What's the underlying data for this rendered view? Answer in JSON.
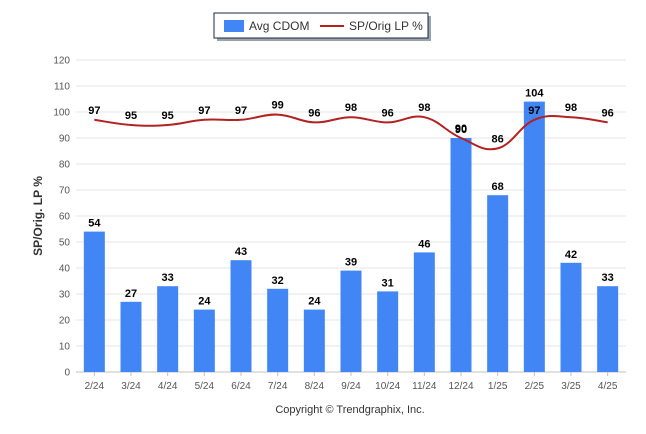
{
  "colors": {
    "bar": "#4285f4",
    "line": "#b22222"
  },
  "chart_data": {
    "type": "bar",
    "categories": [
      "2/24",
      "3/24",
      "4/24",
      "5/24",
      "6/24",
      "7/24",
      "8/24",
      "9/24",
      "10/24",
      "11/24",
      "12/24",
      "1/25",
      "2/25",
      "3/25",
      "4/25"
    ],
    "series": [
      {
        "name": "Avg CDOM",
        "type": "bar",
        "values": [
          54,
          27,
          33,
          24,
          43,
          32,
          24,
          39,
          31,
          46,
          90,
          68,
          104,
          42,
          33
        ]
      },
      {
        "name": "SP/Orig LP %",
        "type": "line",
        "values": [
          97,
          95,
          95,
          97,
          97,
          99,
          96,
          98,
          96,
          98,
          90,
          86,
          97,
          98,
          96
        ]
      }
    ],
    "ylabel": "SP/Orig. LP %",
    "ylim": [
      0,
      120
    ],
    "yticks": [
      0,
      10,
      20,
      30,
      40,
      50,
      60,
      70,
      80,
      90,
      100,
      110,
      120
    ],
    "grid": true,
    "legend": "top-center"
  },
  "legend": {
    "bar_label": "Avg CDOM",
    "line_label": "SP/Orig LP %"
  },
  "credit": "Copyright © Trendgraphix, Inc."
}
